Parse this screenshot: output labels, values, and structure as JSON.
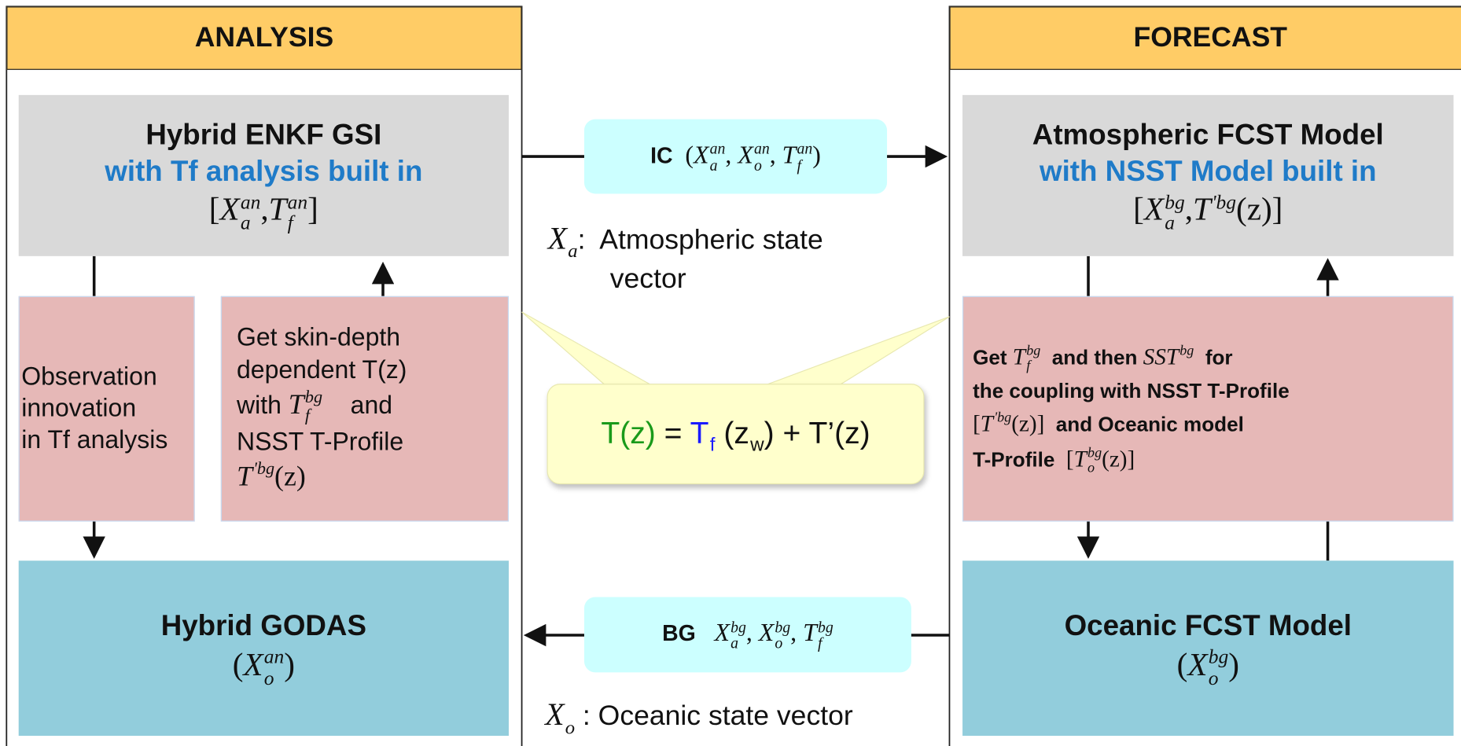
{
  "headers": [
    "ANALYSIS",
    "FORECAST"
  ],
  "boxes": [
    {
      "lines": [
        [
          {
            "t": "Hybrid ENKF GSI"
          }
        ],
        [
          {
            "t": "with Tf analysis built in",
            "color": "#1f7bc8"
          }
        ],
        [
          {
            "m": [
              "[",
              {
                "b": "X",
                "sub": "a",
                "sup": "an"
              },
              ",",
              {
                "b": "T",
                "sub": "f",
                "sup": "an"
              },
              "]"
            ]
          }
        ]
      ]
    },
    {
      "lines": [
        [
          {
            "t": "Observation"
          }
        ],
        [
          {
            "t": "innovation"
          }
        ],
        [
          {
            "t": "in Tf analysis"
          }
        ]
      ]
    },
    {
      "lines": [
        [
          {
            "t": "Get skin-depth"
          }
        ],
        [
          {
            "t": "dependent T(z)"
          }
        ],
        [
          {
            "t": "with "
          },
          {
            "m": [
              {
                "b": "T",
                "sub": "f",
                "sup": "bg"
              }
            ]
          },
          {
            "t": "    and"
          }
        ],
        [
          {
            "t": "NSST T-Profile"
          }
        ],
        [
          {
            "m": [
              {
                "b": "T",
                "sup": "'bg"
              },
              "(z)"
            ]
          }
        ]
      ]
    },
    {
      "lines": [
        [
          {
            "t": "Hybrid GODAS"
          }
        ],
        [
          {
            "m": [
              "(",
              {
                "b": "X",
                "sub": "o",
                "sup": "an"
              },
              ")"
            ]
          }
        ]
      ]
    },
    {
      "lines": [
        [
          {
            "t": "Atmospheric FCST Model"
          }
        ],
        [
          {
            "t": "with NSST Model built in",
            "color": "#1f7bc8"
          }
        ],
        [
          {
            "m": [
              "[",
              {
                "b": "X",
                "sub": "a",
                "sup": "bg"
              },
              ",",
              {
                "b": "T",
                "sup": "'bg"
              },
              "(z)]"
            ]
          }
        ]
      ]
    },
    {
      "lines": [
        [
          {
            "t": "Get "
          },
          {
            "m": [
              {
                "b": "T",
                "sub": "f",
                "sup": "bg"
              }
            ]
          },
          {
            "t": "  and then "
          },
          {
            "m": [
              {
                "b": "SST",
                "sup": "bg"
              }
            ]
          },
          {
            "t": "  for"
          }
        ],
        [
          {
            "t": "the coupling with NSST T-Profile"
          }
        ],
        [
          {
            "m": [
              "[",
              {
                "b": "T",
                "sup": "'bg"
              },
              "(z)]"
            ]
          },
          {
            "t": "  and Oceanic model"
          }
        ],
        [
          {
            "t": "T-Profile  "
          },
          {
            "m": [
              "[",
              {
                "b": "T",
                "sub": "o",
                "sup": "bg"
              },
              "(z)]"
            ]
          }
        ]
      ]
    },
    {
      "lines": [
        [
          {
            "t": "Oceanic FCST Model"
          }
        ],
        [
          {
            "m": [
              "(",
              {
                "b": "X",
                "sub": "o",
                "sup": "bg"
              },
              ")"
            ]
          }
        ]
      ]
    },
    {
      "lines": [
        [
          {
            "t": "IC  "
          },
          {
            "m": [
              "(",
              {
                "b": "X",
                "sub": "a",
                "sup": "an"
              },
              ", ",
              {
                "b": "X",
                "sub": "o",
                "sup": "an"
              },
              ", ",
              {
                "b": "T",
                "sub": "f",
                "sup": "an"
              },
              ")"
            ]
          }
        ]
      ]
    },
    {
      "lines": [
        [
          {
            "t": "BG   "
          },
          {
            "m": [
              {
                "b": "X",
                "sub": "a",
                "sup": "bg"
              },
              ", ",
              {
                "b": "X",
                "sub": "o",
                "sup": "bg"
              },
              ", ",
              {
                "b": "T",
                "sub": "f",
                "sup": "bg"
              }
            ]
          }
        ]
      ]
    },
    {
      "lines": [
        [
          {
            "m": [
              {
                "b": "X",
                "sub": "a"
              }
            ]
          },
          {
            "t": ":  Atmospheric state"
          }
        ],
        [
          {
            "t": "        vector"
          }
        ]
      ]
    },
    {
      "lines": [
        [
          {
            "m": [
              {
                "b": "X",
                "sub": "o"
              }
            ]
          },
          {
            "t": " : Oceanic state vector"
          }
        ]
      ]
    },
    {
      "lines": [
        [
          {
            "s": [
              "T(z)"
            ],
            "color": "#1a9a1a"
          },
          {
            "s": [
              " = "
            ]
          },
          {
            "s": [
              {
                "b": "T",
                "sub": "f"
              }
            ],
            "color": "#1a1aff"
          },
          {
            "s": [
              " (z",
              {
                "b": "",
                "sub": "w"
              },
              ") + T’(z)"
            ]
          }
        ]
      ]
    }
  ]
}
